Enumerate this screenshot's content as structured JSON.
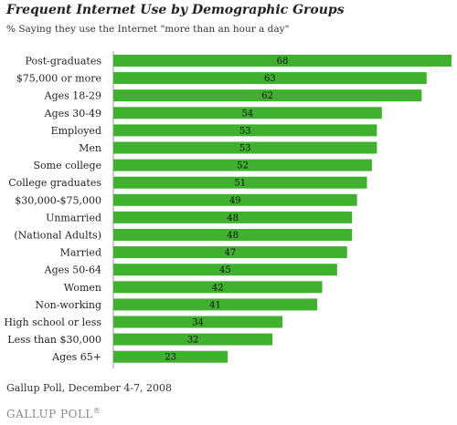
{
  "header": {
    "title": "Frequent Internet Use by Demographic Groups",
    "subtitle": "% Saying they use the Internet \"more than an hour a day\""
  },
  "footer": {
    "source": "Gallup Poll, December 4-7, 2008",
    "logo": "GALLUP POLL",
    "logo_mark": "®"
  },
  "colors": {
    "bar": "#3fb12f",
    "axis": "#999999"
  },
  "chart_data": {
    "type": "bar",
    "orientation": "horizontal",
    "title": "Frequent Internet Use by Demographic Groups",
    "subtitle": "% Saying they use the Internet \"more than an hour a day\"",
    "categories": [
      "Post-graduates",
      "$75,000 or more",
      "Ages 18-29",
      "Ages 30-49",
      "Employed",
      "Men",
      "Some college",
      "College graduates",
      "$30,000-$75,000",
      "Unmarried",
      "(National Adults)",
      "Married",
      "Ages 50-64",
      "Women",
      "Non-working",
      "High school or less",
      "Less than $30,000",
      "Ages 65+"
    ],
    "values": [
      68,
      63,
      62,
      54,
      53,
      53,
      52,
      51,
      49,
      48,
      48,
      47,
      45,
      42,
      41,
      34,
      32,
      23
    ],
    "xlim": [
      0,
      68
    ],
    "grid": false,
    "legend": "none"
  }
}
